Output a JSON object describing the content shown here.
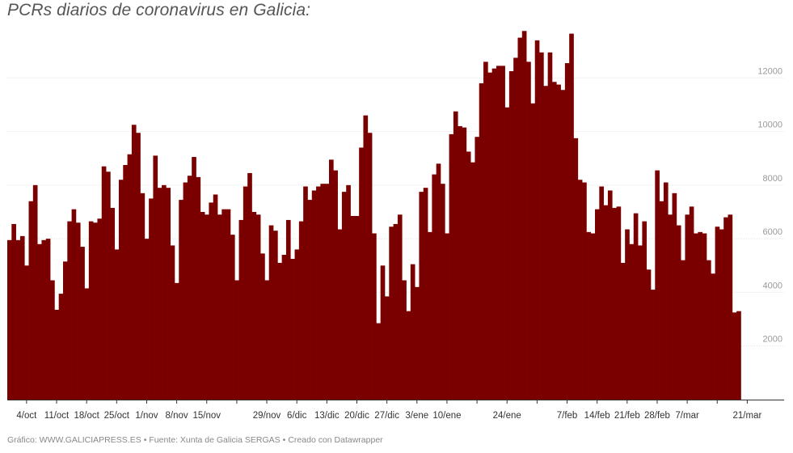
{
  "chart_data": {
    "type": "bar",
    "title": "PCRs diarios de coronavirus en Galicia:",
    "color": "#7a0000",
    "xlabel": "",
    "ylabel": "",
    "ylim": [
      0,
      13500
    ],
    "y_ticks": [
      2000,
      4000,
      6000,
      8000,
      10000,
      12000
    ],
    "y_tick_labels": [
      "2000",
      "4000",
      "6000",
      "8000",
      "10000",
      "12000"
    ],
    "grid": true,
    "x_labels": [
      {
        "label": "4/oct",
        "day": 4
      },
      {
        "label": "11/oct",
        "day": 11
      },
      {
        "label": "18/oct",
        "day": 18
      },
      {
        "label": "25/oct",
        "day": 25
      },
      {
        "label": "1/nov",
        "day": 32
      },
      {
        "label": "8/nov",
        "day": 39
      },
      {
        "label": "15/nov",
        "day": 46
      },
      {
        "label": "29/nov",
        "day": 60
      },
      {
        "label": "6/dic",
        "day": 67
      },
      {
        "label": "13/dic",
        "day": 74
      },
      {
        "label": "20/dic",
        "day": 81
      },
      {
        "label": "27/dic",
        "day": 88
      },
      {
        "label": "3/ene",
        "day": 95
      },
      {
        "label": "10/ene",
        "day": 102
      },
      {
        "label": "24/ene",
        "day": 116
      },
      {
        "label": "7/feb",
        "day": 130
      },
      {
        "label": "14/feb",
        "day": 137
      },
      {
        "label": "21/feb",
        "day": 144
      },
      {
        "label": "28/feb",
        "day": 151
      },
      {
        "label": "7/mar",
        "day": 158
      },
      {
        "label": "21/mar",
        "day": 172
      }
    ],
    "x_ticks_unlabeled": [
      53,
      109,
      123,
      165
    ],
    "series": [
      {
        "values": [
          5950,
          6550,
          5950,
          6100,
          5000,
          7400,
          8000,
          5800,
          5950,
          6000,
          4450,
          3350,
          3950,
          5150,
          6650,
          7100,
          6600,
          5700,
          4150,
          6650,
          6600,
          6750,
          8700,
          8500,
          7150,
          5600,
          8200,
          8750,
          9150,
          10250,
          9950,
          7700,
          6000,
          7500,
          9100,
          7900,
          8000,
          7900,
          5750,
          4350,
          7450,
          8100,
          8350,
          9050,
          8300,
          7000,
          6900,
          7350,
          7650,
          6900,
          7100,
          7100,
          6150,
          4450,
          6700,
          7950,
          8450,
          7000,
          6900,
          5450,
          4450,
          6500,
          6300,
          5100,
          5400,
          6700,
          5250,
          5600,
          6650,
          7950,
          7450,
          7800,
          7950,
          8050,
          8050,
          8950,
          8550,
          6350,
          7750,
          8000,
          6850,
          6850,
          9400,
          10600,
          9950,
          6200,
          2850,
          5000,
          3850,
          6450,
          6550,
          6900,
          4450,
          3300,
          5050,
          4200,
          7750,
          7900,
          6250,
          8400,
          8800,
          8050,
          6200,
          9900,
          10750,
          10200,
          10150,
          9250,
          8850,
          9800,
          11800,
          12600,
          12200,
          12350,
          12450,
          12450,
          10900,
          12250,
          12750,
          13500,
          13750,
          12600,
          11050,
          13400,
          12950,
          11700,
          12950,
          11850,
          11750,
          11550,
          12550,
          13650,
          9750,
          8200,
          8100,
          6250,
          6200,
          7100,
          7950,
          7250,
          7800,
          7150,
          7200,
          5100,
          6350,
          5800,
          6950,
          5750,
          6650,
          4850,
          4100,
          8550,
          7400,
          8100,
          6900,
          7700,
          6500,
          5200,
          6900,
          7200,
          6200,
          6250,
          6200,
          5200,
          4700,
          6450,
          6350,
          6800,
          6900,
          3250,
          3300
        ]
      }
    ]
  },
  "footer": {
    "credit": "Gráfico: WWW.GALICIAPRESS.ES",
    "source": "Fuente: Xunta de Galicia SERGAS",
    "tool": "Creado con Datawrapper",
    "separator": "•"
  }
}
